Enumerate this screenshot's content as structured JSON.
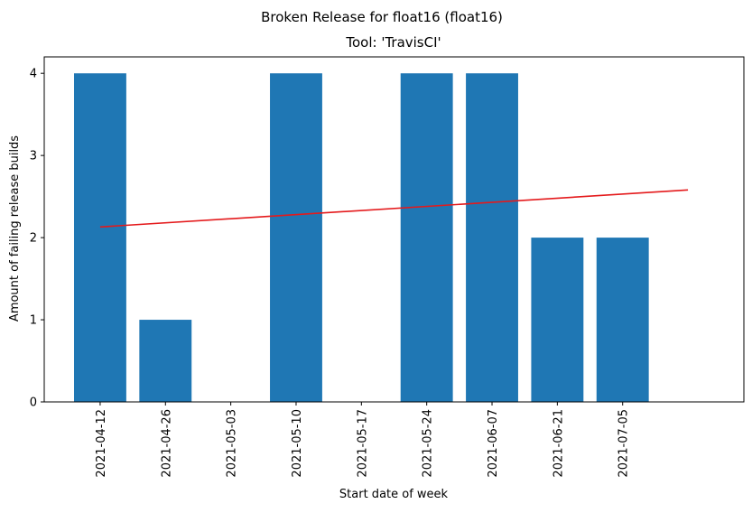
{
  "chart_data": {
    "type": "bar",
    "suptitle": "Broken Release for float16 (float16)",
    "title": "Tool: 'TravisCI'",
    "xlabel": "Start date of week",
    "ylabel": "Amount of failing release builds",
    "categories": [
      "2021-04-12",
      "2021-04-26",
      "2021-05-03",
      "2021-05-10",
      "2021-05-17",
      "2021-05-24",
      "2021-06-07",
      "2021-06-21",
      "2021-07-05"
    ],
    "values": [
      4,
      1,
      0,
      4,
      0,
      4,
      4,
      2,
      2
    ],
    "bar_color": "#1f77b4",
    "ylim": [
      0,
      4.2
    ],
    "yticks": [
      0,
      1,
      2,
      3,
      4
    ],
    "trend_line": {
      "color": "#e41a1c",
      "start": 2.13,
      "end": 2.58
    },
    "grid": false,
    "legend": "none"
  }
}
